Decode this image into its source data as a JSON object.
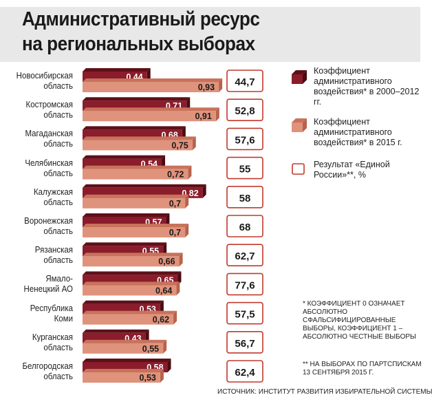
{
  "title": {
    "line1": "Административный ресурс",
    "line2": "на региональных выборах"
  },
  "colors": {
    "series1": "#8a1c2b",
    "series2": "#e0937c",
    "box_border": "#c0392b",
    "background": "#ffffff",
    "title_bg": "#e8e8e8"
  },
  "legend": {
    "series1": "Коэффициент административного воздействия* в 2000–2012 гг.",
    "series2": "Коэффициент административного воздействия* в 2015 г.",
    "result": "Результат «Единой России»**, %"
  },
  "notes": {
    "note1": "* коэффициент 0 означает абсолютно сфальсифицированные выборы, коэффициент 1 – абсолютно честные выборы",
    "note2": "** на выборах по партспискам 13 сентября 2015 г."
  },
  "source": "Источник: Институт развития избирательной системы",
  "regions": [
    {
      "line1": "Новосибирская",
      "line2": "область"
    },
    {
      "line1": "Костромская",
      "line2": "область"
    },
    {
      "line1": "Магаданская",
      "line2": "область"
    },
    {
      "line1": "Челябинская",
      "line2": "область"
    },
    {
      "line1": "Калужская",
      "line2": "область"
    },
    {
      "line1": "Воронежская",
      "line2": "область"
    },
    {
      "line1": "Рязанская",
      "line2": "область"
    },
    {
      "line1": "Ямало-",
      "line2": "Ненецкий АО"
    },
    {
      "line1": "Республика",
      "line2": "Коми"
    },
    {
      "line1": "Курганская",
      "line2": "область"
    },
    {
      "line1": "Белгородская",
      "line2": "область"
    }
  ],
  "chart_data": {
    "type": "bar",
    "orientation": "horizontal",
    "categories": [
      "Новосибирская область",
      "Костромская область",
      "Магаданская область",
      "Челябинская область",
      "Калужская область",
      "Воронежская область",
      "Рязанская область",
      "Ямало-Ненецкий АО",
      "Республика Коми",
      "Курганская область",
      "Белгородская область"
    ],
    "series": [
      {
        "name": "Коэффициент административного воздействия* в 2000–2012 гг.",
        "values": [
          0.44,
          0.71,
          0.68,
          0.54,
          0.82,
          0.57,
          0.55,
          0.65,
          0.53,
          0.43,
          0.58
        ],
        "labels": [
          "0,44",
          "0,71",
          "0,68",
          "0,54",
          "0,82",
          "0,57",
          "0,55",
          "0,65",
          "0,53",
          "0,43",
          "0,58"
        ]
      },
      {
        "name": "Коэффициент административного воздействия* в 2015 г.",
        "values": [
          0.93,
          0.91,
          0.75,
          0.72,
          0.7,
          0.7,
          0.66,
          0.64,
          0.62,
          0.55,
          0.53
        ],
        "labels": [
          "0,93",
          "0,91",
          "0,75",
          "0,72",
          "0,7",
          "0,7",
          "0,66",
          "0,64",
          "0,62",
          "0,55",
          "0,53"
        ]
      },
      {
        "name": "Результат «Единой России»**, %",
        "values": [
          44.7,
          52.8,
          57.6,
          55,
          58,
          68,
          62.7,
          77.6,
          57.5,
          56.7,
          62.4
        ],
        "labels": [
          "44,7",
          "52,8",
          "57,6",
          "55",
          "58",
          "68",
          "62,7",
          "77,6",
          "57,5",
          "56,7",
          "62,4"
        ]
      }
    ],
    "xlim": [
      0,
      1
    ]
  }
}
